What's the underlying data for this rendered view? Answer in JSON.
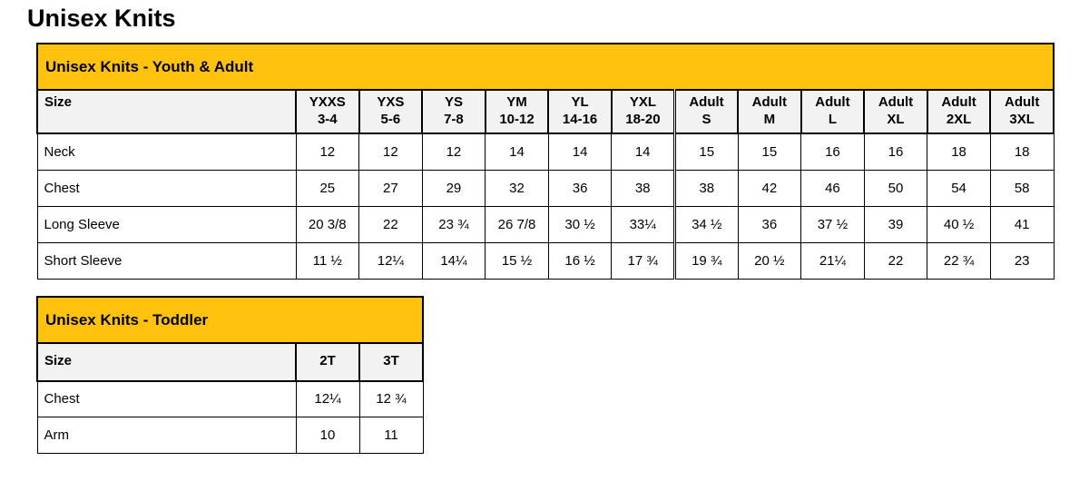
{
  "page_title": "Unisex Knits",
  "colors": {
    "band_bg": "#FFC20E",
    "header_bg": "#F2F2F2",
    "border": "#000000"
  },
  "tables": [
    {
      "band_title": "Unisex Knits - Youth & Adult",
      "size_label": "Size",
      "columns": [
        "YXXS\n3-4",
        "YXS\n5-6",
        "YS\n7-8",
        "YM\n10-12",
        "YL\n14-16",
        "YXL\n18-20",
        "Adult\nS",
        "Adult\nM",
        "Adult\nL",
        "Adult\nXL",
        "Adult\n2XL",
        "Adult\n3XL"
      ],
      "adult_divider_before": 6,
      "rows": [
        {
          "label": "Neck",
          "values": [
            "12",
            "12",
            "12",
            "14",
            "14",
            "14",
            "15",
            "15",
            "16",
            "16",
            "18",
            "18"
          ]
        },
        {
          "label": "Chest",
          "values": [
            "25",
            "27",
            "29",
            "32",
            "36",
            "38",
            "38",
            "42",
            "46",
            "50",
            "54",
            "58"
          ]
        },
        {
          "label": "Long Sleeve",
          "values": [
            "20 3/8",
            "22",
            "23 ¾",
            "26 7/8",
            "30 ½",
            "33¼",
            "34 ½",
            "36",
            "37 ½",
            "39",
            "40 ½",
            "41"
          ]
        },
        {
          "label": "Short Sleeve",
          "values": [
            "11 ½",
            "12¼",
            "14¼",
            "15 ½",
            "16 ½",
            "17 ¾",
            "19 ¾",
            "20 ½",
            "21¼",
            "22",
            "22 ¾",
            "23"
          ]
        }
      ]
    },
    {
      "band_title": "Unisex Knits - Toddler",
      "size_label": "Size",
      "columns": [
        "2T",
        "3T"
      ],
      "rows": [
        {
          "label": "Chest",
          "values": [
            "12¼",
            "12 ¾"
          ]
        },
        {
          "label": "Arm",
          "values": [
            "10",
            "11"
          ]
        }
      ]
    }
  ]
}
